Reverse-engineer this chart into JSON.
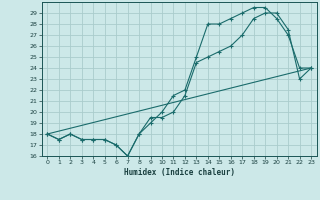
{
  "title": "",
  "xlabel": "Humidex (Indice chaleur)",
  "bg_color": "#cce8e8",
  "grid_color": "#aacccc",
  "line_color": "#1a6b6b",
  "xlim": [
    -0.5,
    23.5
  ],
  "ylim": [
    16,
    30
  ],
  "xticks": [
    0,
    1,
    2,
    3,
    4,
    5,
    6,
    7,
    8,
    9,
    10,
    11,
    12,
    13,
    14,
    15,
    16,
    17,
    18,
    19,
    20,
    21,
    22,
    23
  ],
  "yticks": [
    16,
    17,
    18,
    19,
    20,
    21,
    22,
    23,
    24,
    25,
    26,
    27,
    28,
    29
  ],
  "line1_x": [
    0,
    1,
    2,
    3,
    4,
    5,
    6,
    7,
    8,
    9,
    10,
    11,
    12,
    13,
    14,
    15,
    16,
    17,
    18,
    19,
    20,
    21,
    22,
    23
  ],
  "line1_y": [
    18.0,
    17.5,
    18.0,
    17.5,
    17.5,
    17.5,
    17.0,
    16.0,
    18.0,
    19.0,
    20.0,
    21.5,
    22.0,
    25.0,
    28.0,
    28.0,
    28.5,
    29.0,
    29.5,
    29.5,
    28.5,
    27.0,
    24.0,
    24.0
  ],
  "line2_x": [
    0,
    1,
    2,
    3,
    4,
    5,
    6,
    7,
    8,
    9,
    10,
    11,
    12,
    13,
    14,
    15,
    16,
    17,
    18,
    19,
    20,
    21,
    22,
    23
  ],
  "line2_y": [
    18.0,
    17.5,
    18.0,
    17.5,
    17.5,
    17.5,
    17.0,
    16.0,
    18.0,
    19.5,
    19.5,
    20.0,
    21.5,
    24.5,
    25.0,
    25.5,
    26.0,
    27.0,
    28.5,
    29.0,
    29.0,
    27.5,
    23.0,
    24.0
  ],
  "line3_x": [
    0,
    23
  ],
  "line3_y": [
    18.0,
    24.0
  ]
}
